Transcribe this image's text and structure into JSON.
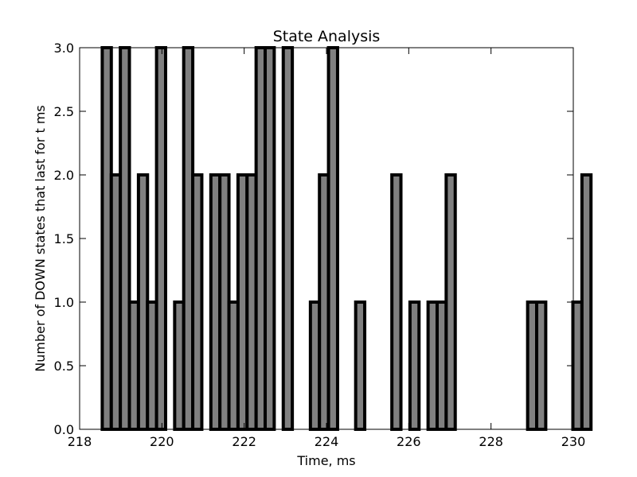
{
  "chart_data": {
    "type": "bar",
    "title": "State Analysis",
    "xlabel": "Time, ms",
    "ylabel": "Number of DOWN states that last for t ms",
    "xlim": [
      218,
      230
    ],
    "ylim": [
      0,
      3.0
    ],
    "xticks": [
      "218",
      "220",
      "222",
      "224",
      "226",
      "228",
      "230"
    ],
    "yticks": [
      "0.0",
      "0.5",
      "1.0",
      "1.5",
      "2.0",
      "2.5",
      "3.0"
    ],
    "bin_start": 218.55,
    "bin_width": 0.22,
    "values": [
      3,
      2,
      3,
      1,
      2,
      1,
      3,
      0,
      1,
      3,
      2,
      0,
      2,
      2,
      1,
      2,
      2,
      3,
      3,
      0,
      3,
      0,
      0,
      1,
      2,
      3,
      0,
      0,
      1,
      0,
      0,
      0,
      2,
      0,
      1,
      0,
      1,
      1,
      2,
      0,
      0,
      0,
      0,
      0,
      0,
      0,
      0,
      1,
      1,
      0,
      0,
      0,
      1,
      2
    ],
    "bar_color": "#808080",
    "edge_color": "#000000",
    "grid": false
  }
}
